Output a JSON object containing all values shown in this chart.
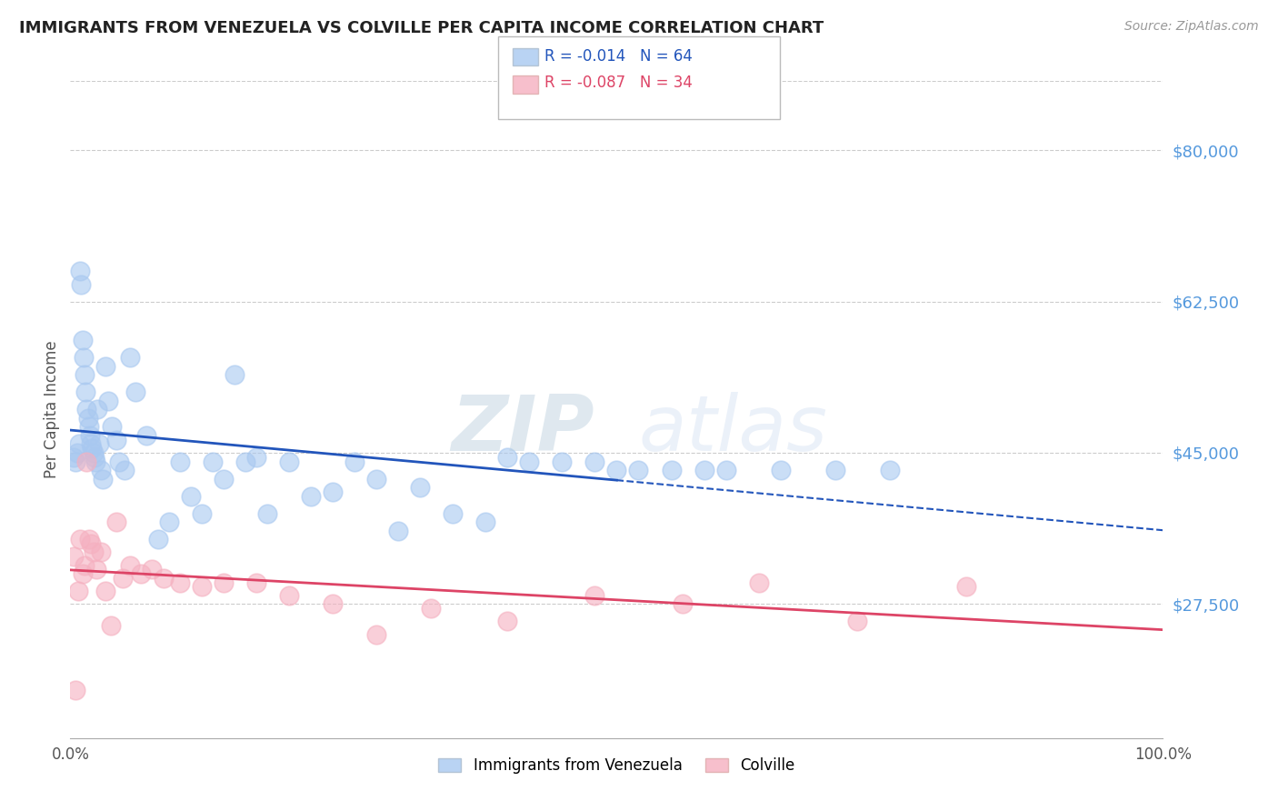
{
  "title": "IMMIGRANTS FROM VENEZUELA VS COLVILLE PER CAPITA INCOME CORRELATION CHART",
  "source": "Source: ZipAtlas.com",
  "ylabel": "Per Capita Income",
  "xlim": [
    0,
    100
  ],
  "ylim": [
    12000,
    88000
  ],
  "yticks": [
    27500,
    45000,
    62500,
    80000
  ],
  "ytick_labels": [
    "$27,500",
    "$45,000",
    "$62,500",
    "$80,000"
  ],
  "xtick_labels": [
    "0.0%",
    "100.0%"
  ],
  "legend1_label": "Immigrants from Venezuela",
  "legend2_label": "Colville",
  "R1": "-0.014",
  "N1": "64",
  "R2": "-0.087",
  "N2": "34",
  "blue_color": "#A8C8F0",
  "pink_color": "#F5B0C0",
  "trend_blue": "#2255BB",
  "trend_pink": "#DD4466",
  "grid_color": "#CCCCCC",
  "title_color": "#222222",
  "axis_label_color": "#555555",
  "ytick_color": "#5599DD",
  "watermark_color": "#C5D8EE",
  "blue_x": [
    0.3,
    0.5,
    0.6,
    0.8,
    0.9,
    1.0,
    1.1,
    1.2,
    1.3,
    1.4,
    1.5,
    1.6,
    1.7,
    1.8,
    1.9,
    2.0,
    2.1,
    2.2,
    2.3,
    2.5,
    2.6,
    2.8,
    3.0,
    3.2,
    3.5,
    3.8,
    4.2,
    4.5,
    5.0,
    5.5,
    6.0,
    7.0,
    8.0,
    9.0,
    10.0,
    11.0,
    12.0,
    13.0,
    14.0,
    15.0,
    16.0,
    17.0,
    18.0,
    20.0,
    22.0,
    24.0,
    26.0,
    28.0,
    30.0,
    32.0,
    35.0,
    38.0,
    40.0,
    42.0,
    45.0,
    48.0,
    50.0,
    52.0,
    55.0,
    58.0,
    60.0,
    65.0,
    70.0,
    75.0
  ],
  "blue_y": [
    44500,
    44000,
    45000,
    46000,
    66000,
    64500,
    58000,
    56000,
    54000,
    52000,
    50000,
    49000,
    48000,
    47000,
    46000,
    45500,
    45000,
    44500,
    44000,
    50000,
    46000,
    43000,
    42000,
    55000,
    51000,
    48000,
    46500,
    44000,
    43000,
    56000,
    52000,
    47000,
    35000,
    37000,
    44000,
    40000,
    38000,
    44000,
    42000,
    54000,
    44000,
    44500,
    38000,
    44000,
    40000,
    40500,
    44000,
    42000,
    36000,
    41000,
    38000,
    37000,
    44500,
    44000,
    44000,
    44000,
    43000,
    43000,
    43000,
    43000,
    43000,
    43000,
    43000,
    43000
  ],
  "pink_x": [
    0.3,
    0.5,
    0.7,
    0.9,
    1.1,
    1.3,
    1.5,
    1.7,
    1.9,
    2.1,
    2.4,
    2.8,
    3.2,
    3.7,
    4.2,
    4.8,
    5.5,
    6.5,
    7.5,
    8.5,
    10.0,
    12.0,
    14.0,
    17.0,
    20.0,
    24.0,
    28.0,
    33.0,
    40.0,
    48.0,
    56.0,
    63.0,
    72.0,
    82.0
  ],
  "pink_y": [
    33000,
    17500,
    29000,
    35000,
    31000,
    32000,
    44000,
    35000,
    34500,
    33500,
    31500,
    33500,
    29000,
    25000,
    37000,
    30500,
    32000,
    31000,
    31500,
    30500,
    30000,
    29500,
    30000,
    30000,
    28500,
    27500,
    24000,
    27000,
    25500,
    28500,
    27500,
    30000,
    25500,
    29500
  ]
}
